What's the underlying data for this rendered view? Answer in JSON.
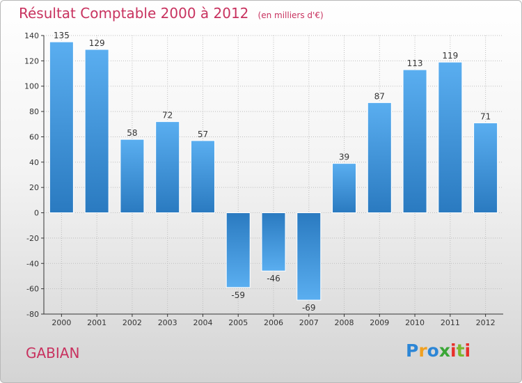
{
  "chart_data": {
    "type": "bar",
    "title": "Résultat Comptable 2000 à 2012",
    "subtitle": "(en milliers d'€)",
    "categories": [
      "2000",
      "2001",
      "2002",
      "2003",
      "2004",
      "2005",
      "2006",
      "2007",
      "2008",
      "2009",
      "2010",
      "2011",
      "2012"
    ],
    "values": [
      135,
      129,
      58,
      72,
      57,
      -59,
      -46,
      -69,
      39,
      87,
      113,
      119,
      71
    ],
    "ylim": [
      -80,
      140
    ],
    "yticks": [
      140,
      120,
      100,
      80,
      60,
      40,
      20,
      0,
      -20,
      -40,
      -60,
      -80
    ],
    "xlabel": "",
    "ylabel": "",
    "grid": true,
    "bar_color": "#3d8fd6"
  },
  "commune": "GABIAN",
  "logo": {
    "letters": [
      "P",
      "r",
      "o",
      "x",
      "i",
      "t",
      "i"
    ],
    "colors": [
      "#2c86d6",
      "#f0a020",
      "#2c86d6",
      "#3aa636",
      "#e8302a",
      "#7cb82f",
      "#e8302a"
    ]
  }
}
